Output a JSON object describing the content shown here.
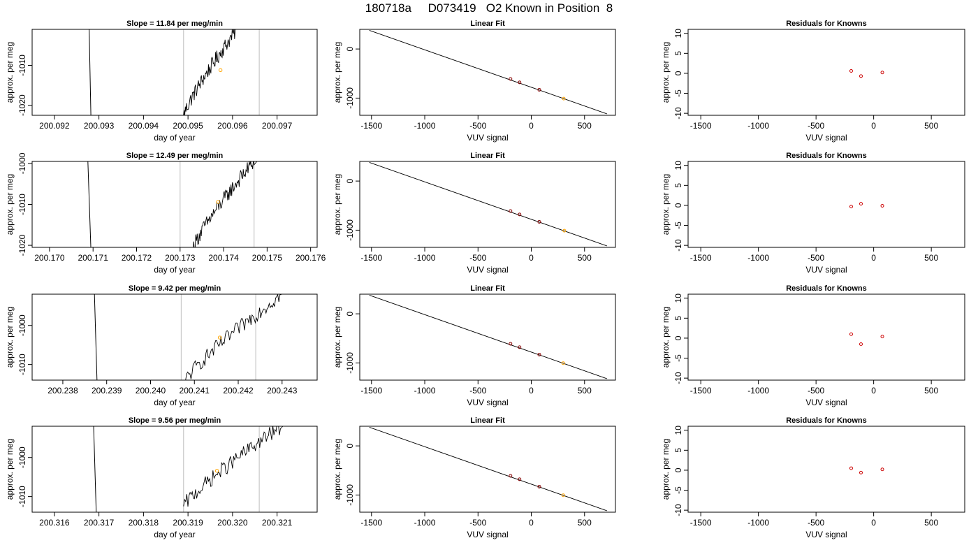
{
  "figure": {
    "title": "180718a     D073419   O2 Known in Position  8"
  },
  "chart_data": [
    {
      "type": "line",
      "panel": "slope",
      "row": 0,
      "title": "Slope =  11.84  per meg/min",
      "xlabel": "day of year",
      "ylabel": "approx. per meg",
      "xlim": [
        200.0915,
        200.0979
      ],
      "ylim": [
        -1022.5,
        -1001
      ],
      "x_ticks": [
        200.092,
        200.093,
        200.094,
        200.095,
        200.096,
        200.097
      ],
      "x_tick_labels": [
        "200.092",
        "200.093",
        "200.094",
        "200.095",
        "200.096",
        "200.097"
      ],
      "y_ticks": [
        -1020,
        -1010
      ],
      "y_tick_labels": [
        "-1020",
        "-1010"
      ],
      "vlines": [
        200.0949,
        200.0966
      ],
      "trace": {
        "start_x": 200.0949,
        "end_x": 200.0961,
        "start_y": -1022.5,
        "end_y": -1001
      },
      "drop": {
        "x1": 200.09278,
        "x2": 200.09282
      },
      "marker": {
        "x": 200.09573,
        "y": -1011.2
      }
    },
    {
      "type": "line",
      "panel": "slope",
      "row": 1,
      "title": "Slope =  12.49  per meg/min",
      "xlabel": "day of year",
      "ylabel": "approx. per meg",
      "xlim": [
        200.1696,
        200.17615
      ],
      "ylim": [
        -1020.5,
        -999.5
      ],
      "x_ticks": [
        200.17,
        200.171,
        200.172,
        200.173,
        200.174,
        200.175,
        200.176
      ],
      "x_tick_labels": [
        "200.170",
        "200.171",
        "200.172",
        "200.173",
        "200.174",
        "200.175",
        "200.176"
      ],
      "y_ticks": [
        -1020,
        -1010,
        -1000
      ],
      "y_tick_labels": [
        "-1020",
        "-1010",
        "-1000"
      ],
      "vlines": [
        200.173,
        200.1747
      ],
      "trace": {
        "start_x": 200.1733,
        "end_x": 200.1747,
        "start_y": -1020.5,
        "end_y": -999.5
      },
      "drop": {
        "x1": 200.17088,
        "x2": 200.17095
      },
      "marker": {
        "x": 200.17387,
        "y": -1009.4
      }
    },
    {
      "type": "line",
      "panel": "slope",
      "row": 2,
      "title": "Slope =  9.42  per meg/min",
      "xlabel": "day of year",
      "ylabel": "approx. per meg",
      "xlim": [
        200.2373,
        200.2438
      ],
      "ylim": [
        -1014,
        -992
      ],
      "x_ticks": [
        200.238,
        200.239,
        200.24,
        200.241,
        200.242,
        200.243
      ],
      "x_tick_labels": [
        "200.238",
        "200.239",
        "200.240",
        "200.241",
        "200.242",
        "200.243"
      ],
      "y_ticks": [
        -1010,
        -1000
      ],
      "y_tick_labels": [
        "-1010",
        "-1000"
      ],
      "vlines": [
        200.2407,
        200.2424
      ],
      "trace": {
        "start_x": 200.2408,
        "end_x": 200.243,
        "start_y": -1014,
        "end_y": -992
      },
      "drop": {
        "x1": 200.23872,
        "x2": 200.23878
      },
      "marker": {
        "x": 200.24158,
        "y": -1003.1
      }
    },
    {
      "type": "line",
      "panel": "slope",
      "row": 3,
      "title": "Slope =  9.56  per meg/min",
      "xlabel": "day of year",
      "ylabel": "approx. per meg",
      "xlim": [
        200.3155,
        200.3219
      ],
      "ylim": [
        -1014,
        -992
      ],
      "x_ticks": [
        200.316,
        200.317,
        200.318,
        200.319,
        200.32,
        200.321
      ],
      "x_tick_labels": [
        "200.316",
        "200.317",
        "200.318",
        "200.319",
        "200.320",
        "200.321"
      ],
      "y_ticks": [
        -1010,
        -1000
      ],
      "y_tick_labels": [
        "-1010",
        "-1000"
      ],
      "vlines": [
        200.3189,
        200.3206
      ],
      "trace": {
        "start_x": 200.3189,
        "end_x": 200.3211,
        "start_y": -1012.5,
        "end_y": -992
      },
      "drop": {
        "x1": 200.31688,
        "x2": 200.31694
      },
      "marker": {
        "x": 200.31965,
        "y": -1003.4
      }
    },
    {
      "type": "scatter",
      "panel": "fit",
      "row": 0,
      "title": "Linear Fit",
      "xlabel": "VUV signal",
      "ylabel": "approx. per meg",
      "xlim": [
        -1610,
        790
      ],
      "ylim": [
        -1350,
        400
      ],
      "x_ticks": [
        -1500,
        -1000,
        -500,
        0,
        500
      ],
      "x_tick_labels": [
        "-1500",
        "-1000",
        "-500",
        "0",
        "500"
      ],
      "y_ticks": [
        -1000,
        0
      ],
      "y_tick_labels": [
        "-1000",
        "0"
      ],
      "fit_line": {
        "x": [
          -1520,
          710
        ],
        "y": [
          380,
          -1320
        ]
      },
      "points": {
        "x": [
          -195,
          -110,
          75
        ],
        "y": [
          -610,
          -680,
          -830
        ]
      },
      "highlight": {
        "x": 305,
        "y": -1010
      }
    },
    {
      "type": "scatter",
      "panel": "fit",
      "row": 1,
      "title": "Linear Fit",
      "xlabel": "VUV signal",
      "ylabel": "approx. per meg",
      "xlim": [
        -1610,
        790
      ],
      "ylim": [
        -1350,
        400
      ],
      "x_ticks": [
        -1500,
        -1000,
        -500,
        0,
        500
      ],
      "x_tick_labels": [
        "-1500",
        "-1000",
        "-500",
        "0",
        "500"
      ],
      "y_ticks": [
        -1000,
        0
      ],
      "y_tick_labels": [
        "-1000",
        "0"
      ],
      "fit_line": {
        "x": [
          -1520,
          710
        ],
        "y": [
          380,
          -1320
        ]
      },
      "points": {
        "x": [
          -195,
          -110,
          75
        ],
        "y": [
          -610,
          -680,
          -830
        ]
      },
      "highlight": {
        "x": 310,
        "y": -1010
      }
    },
    {
      "type": "scatter",
      "panel": "fit",
      "row": 2,
      "title": "Linear Fit",
      "xlabel": "VUV signal",
      "ylabel": "approx. per meg",
      "xlim": [
        -1610,
        790
      ],
      "ylim": [
        -1350,
        400
      ],
      "x_ticks": [
        -1500,
        -1000,
        -500,
        0,
        500
      ],
      "x_tick_labels": [
        "-1500",
        "-1000",
        "-500",
        "0",
        "500"
      ],
      "y_ticks": [
        -1000,
        0
      ],
      "y_tick_labels": [
        "-1000",
        "0"
      ],
      "fit_line": {
        "x": [
          -1520,
          710
        ],
        "y": [
          380,
          -1320
        ]
      },
      "points": {
        "x": [
          -195,
          -110,
          75
        ],
        "y": [
          -610,
          -680,
          -830
        ]
      },
      "highlight": {
        "x": 300,
        "y": -1005
      }
    },
    {
      "type": "scatter",
      "panel": "fit",
      "row": 3,
      "title": "Linear Fit",
      "xlabel": "VUV signal",
      "ylabel": "approx. per meg",
      "xlim": [
        -1610,
        790
      ],
      "ylim": [
        -1350,
        400
      ],
      "x_ticks": [
        -1500,
        -1000,
        -500,
        0,
        500
      ],
      "x_tick_labels": [
        "-1500",
        "-1000",
        "-500",
        "0",
        "500"
      ],
      "y_ticks": [
        -1000,
        0
      ],
      "y_tick_labels": [
        "-1000",
        "0"
      ],
      "fit_line": {
        "x": [
          -1520,
          710
        ],
        "y": [
          380,
          -1320
        ]
      },
      "points": {
        "x": [
          -195,
          -110,
          75
        ],
        "y": [
          -610,
          -680,
          -830
        ]
      },
      "highlight": {
        "x": 300,
        "y": -1005
      }
    },
    {
      "type": "scatter",
      "panel": "resid",
      "row": 0,
      "title": "Residuals for Knowns",
      "xlabel": "VUV signal",
      "ylabel": "approx. per meg",
      "xlim": [
        -1610,
        790
      ],
      "ylim": [
        -10.5,
        11
      ],
      "x_ticks": [
        -1500,
        -1000,
        -500,
        0,
        500
      ],
      "x_tick_labels": [
        "-1500",
        "-1000",
        "-500",
        "0",
        "500"
      ],
      "y_ticks": [
        -10,
        -5,
        0,
        5,
        10
      ],
      "y_tick_labels": [
        "-10",
        "-5",
        "0",
        "5",
        "10"
      ],
      "points": {
        "x": [
          -195,
          -110,
          75
        ],
        "y": [
          0.6,
          -0.7,
          0.2
        ]
      }
    },
    {
      "type": "scatter",
      "panel": "resid",
      "row": 1,
      "title": "Residuals for Knowns",
      "xlabel": "VUV signal",
      "ylabel": "approx. per meg",
      "xlim": [
        -1610,
        790
      ],
      "ylim": [
        -10.5,
        11
      ],
      "x_ticks": [
        -1500,
        -1000,
        -500,
        0,
        500
      ],
      "x_tick_labels": [
        "-1500",
        "-1000",
        "-500",
        "0",
        "500"
      ],
      "y_ticks": [
        -10,
        -5,
        0,
        5,
        10
      ],
      "y_tick_labels": [
        "-10",
        "-5",
        "0",
        "5",
        "10"
      ],
      "points": {
        "x": [
          -195,
          -110,
          75
        ],
        "y": [
          -0.3,
          0.4,
          -0.1
        ]
      }
    },
    {
      "type": "scatter",
      "panel": "resid",
      "row": 2,
      "title": "Residuals for Knowns",
      "xlabel": "VUV signal",
      "ylabel": "approx. per meg",
      "xlim": [
        -1610,
        790
      ],
      "ylim": [
        -10.5,
        11
      ],
      "x_ticks": [
        -1500,
        -1000,
        -500,
        0,
        500
      ],
      "x_tick_labels": [
        "-1500",
        "-1000",
        "-500",
        "0",
        "500"
      ],
      "y_ticks": [
        -10,
        -5,
        0,
        5,
        10
      ],
      "y_tick_labels": [
        "-10",
        "-5",
        "0",
        "5",
        "10"
      ],
      "points": {
        "x": [
          -195,
          -110,
          75
        ],
        "y": [
          1.0,
          -1.5,
          0.4
        ]
      }
    },
    {
      "type": "scatter",
      "panel": "resid",
      "row": 3,
      "title": "Residuals for Knowns",
      "xlabel": "VUV signal",
      "ylabel": "approx. per meg",
      "xlim": [
        -1610,
        790
      ],
      "ylim": [
        -10.5,
        11
      ],
      "x_ticks": [
        -1500,
        -1000,
        -500,
        0,
        500
      ],
      "x_tick_labels": [
        "-1500",
        "-1000",
        "-500",
        "0",
        "500"
      ],
      "y_ticks": [
        -10,
        -5,
        0,
        5,
        10
      ],
      "y_tick_labels": [
        "-10",
        "-5",
        "0",
        "5",
        "10"
      ],
      "points": {
        "x": [
          -195,
          -110,
          75
        ],
        "y": [
          0.5,
          -0.6,
          0.2
        ]
      }
    }
  ],
  "colors": {
    "trace": "#000000",
    "vline": "#c8c8c8",
    "marker": "#ffa500",
    "residual_point": "#cc0000",
    "fit_point": "#880000",
    "axis": "#000000"
  }
}
